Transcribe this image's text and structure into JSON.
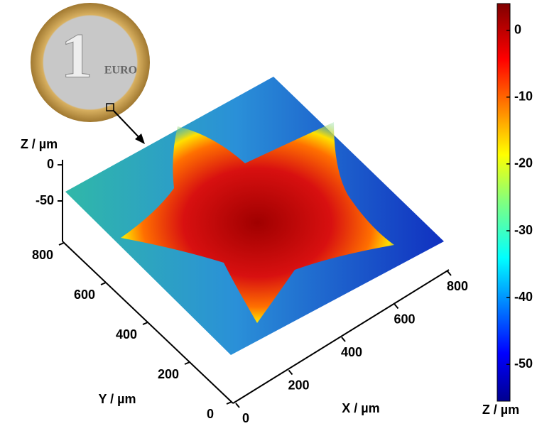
{
  "chart_data": {
    "type": "surface3d",
    "xlabel": "X / µm",
    "ylabel": "Y / µm",
    "zlabel": "Z / µm",
    "xlim": [
      0,
      800
    ],
    "xticks": [
      0,
      200,
      400,
      600,
      800
    ],
    "ylim": [
      0,
      800
    ],
    "yticks": [
      0,
      200,
      400,
      600,
      800
    ],
    "zlim": [
      -105,
      7
    ],
    "zticks": [
      0,
      -50
    ],
    "colorbar": {
      "label": "Z / µm",
      "lim": [
        -55.5,
        4
      ],
      "ticks": [
        0,
        -10,
        -20,
        -30,
        -40,
        -50
      ],
      "colormap": "jet"
    },
    "coin": {
      "denomination": "1",
      "text": "EURO"
    }
  }
}
